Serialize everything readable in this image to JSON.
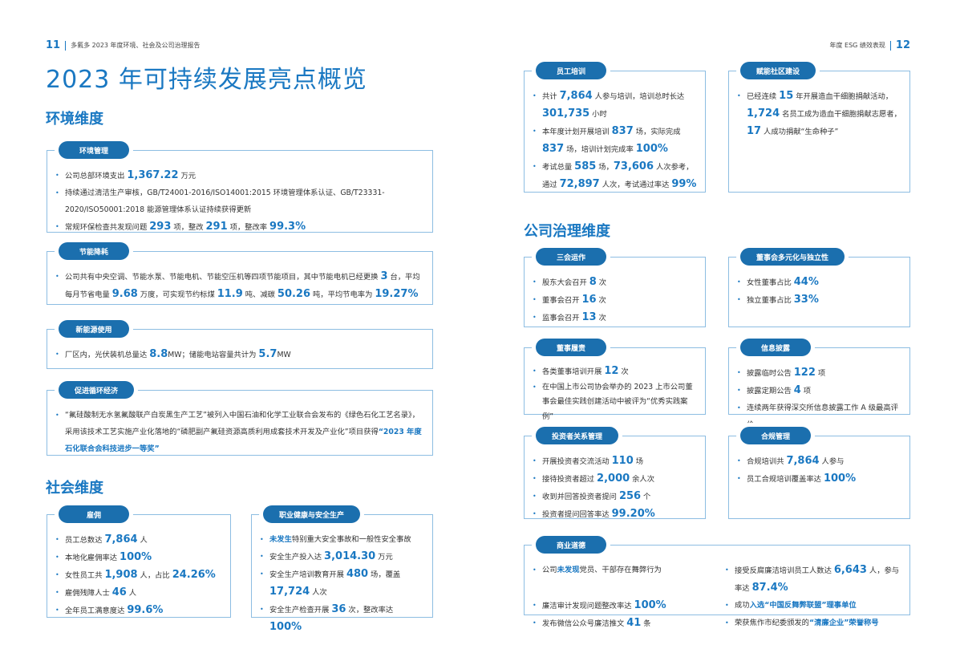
{
  "left_header": {
    "page": "11",
    "text": "多氟多 2023 年度环境、社会及公司治理报告"
  },
  "right_header": {
    "page": "12",
    "text": "年度 ESG 绩效表现"
  },
  "title": "2023 年可持续发展亮点概览",
  "sections": {
    "env": "环境维度",
    "soc": "社会维度",
    "gov": "公司治理维度"
  },
  "colors": {
    "accent": "#1a78c2",
    "pill": "#1b6fae",
    "border": "#8dbde2"
  },
  "cards": [
    {
      "label": "环境管理",
      "items": [
        [
          {
            "t": "公司总部环境支出 "
          },
          {
            "t": "1,367.22",
            "h": "n"
          },
          {
            "t": " 万元"
          }
        ],
        [
          {
            "t": "持续通过清洁生产审核，GB/T24001-2016/ISO14001:2015 环境管理体系认证、GB/T23331-2020/ISO50001:2018 能源管理体系认证持续获得更新"
          }
        ],
        [
          {
            "t": "常规环保检查共发现问题 "
          },
          {
            "t": "293",
            "h": "n"
          },
          {
            "t": " 项，整改 "
          },
          {
            "t": "291",
            "h": "n"
          },
          {
            "t": " 项，整改率 "
          },
          {
            "t": "99.3%",
            "h": "n"
          }
        ]
      ]
    },
    {
      "label": "节能降耗",
      "items": [
        [
          {
            "t": "公司共有中央空调、节能水泵、节能电机、节能空压机等四项节能项目，其中节能电机已经更换 "
          },
          {
            "t": "3",
            "h": "n"
          },
          {
            "t": " 台，平均每月节省电量 "
          },
          {
            "t": "9.68",
            "h": "n"
          },
          {
            "t": " 万度，可实现节约标煤 "
          },
          {
            "t": "11.9",
            "h": "n"
          },
          {
            "t": " 吨、减碳 "
          },
          {
            "t": "50.26",
            "h": "n"
          },
          {
            "t": " 吨，平均节电率为 "
          },
          {
            "t": "19.27%",
            "h": "n"
          }
        ]
      ]
    },
    {
      "label": "新能源使用",
      "items": [
        [
          {
            "t": "厂区内，光伏装机总量达 "
          },
          {
            "t": "8.8",
            "h": "n"
          },
          {
            "t": "MW；储能电站容量共计为 "
          },
          {
            "t": "5.7",
            "h": "n"
          },
          {
            "t": "MW"
          }
        ]
      ]
    },
    {
      "label": "促进循环经济",
      "items": [
        [
          {
            "t": "“氟硅酸制无水氢氟酸联产白炭黑生产工艺”被列入中国石油和化学工业联合会发布的《绿色石化工艺名录》，采用该技术工艺实施产业化落地的“磷肥副产氟硅资源高质利用成套技术开发及产业化”项目获得"
          },
          {
            "t": "“2023 年度石化联合会科技进步一等奖”",
            "h": "b"
          }
        ]
      ]
    },
    {
      "label": "雇佣",
      "items": [
        [
          {
            "t": "员工总数达 "
          },
          {
            "t": "7,864",
            "h": "n"
          },
          {
            "t": " 人"
          }
        ],
        [
          {
            "t": "本地化雇佣率达 "
          },
          {
            "t": "100%",
            "h": "n"
          }
        ],
        [
          {
            "t": "女性员工共 "
          },
          {
            "t": "1,908",
            "h": "n"
          },
          {
            "t": " 人，占比 "
          },
          {
            "t": "24.26%",
            "h": "n"
          }
        ],
        [
          {
            "t": "雇佣残障人士 "
          },
          {
            "t": "46",
            "h": "n"
          },
          {
            "t": " 人"
          }
        ],
        [
          {
            "t": "全年员工满意度达 "
          },
          {
            "t": "99.6%",
            "h": "n"
          }
        ]
      ]
    },
    {
      "label": "职业健康与安全生产",
      "items": [
        [
          {
            "t": "未发生",
            "h": "b"
          },
          {
            "t": "特别重大安全事故和一般性安全事故"
          }
        ],
        [
          {
            "t": "安全生产投入达 "
          },
          {
            "t": "3,014.30",
            "h": "n"
          },
          {
            "t": " 万元"
          }
        ],
        [
          {
            "t": "安全生产培训教育开展 "
          },
          {
            "t": "480",
            "h": "n"
          },
          {
            "t": " 场，覆盖 "
          },
          {
            "t": "17,724",
            "h": "n"
          },
          {
            "t": " 人次"
          }
        ],
        [
          {
            "t": "安全生产检查开展 "
          },
          {
            "t": "36",
            "h": "n"
          },
          {
            "t": " 次，整改率达 "
          },
          {
            "t": "100%",
            "h": "n"
          }
        ]
      ]
    },
    {
      "label": "员工培训",
      "items": [
        [
          {
            "t": "共计 "
          },
          {
            "t": "7,864",
            "h": "n"
          },
          {
            "t": " 人参与培训，培训总时长达 "
          },
          {
            "t": "301,735",
            "h": "n"
          },
          {
            "t": " 小时"
          }
        ],
        [
          {
            "t": "本年度计划开展培训 "
          },
          {
            "t": "837",
            "h": "n"
          },
          {
            "t": " 场，实际完成 "
          },
          {
            "t": "837",
            "h": "n"
          },
          {
            "t": " 场，培训计划完成率 "
          },
          {
            "t": "100%",
            "h": "n"
          }
        ],
        [
          {
            "t": "考试总量 "
          },
          {
            "t": "585",
            "h": "n"
          },
          {
            "t": " 场，"
          },
          {
            "t": "73,606",
            "h": "n"
          },
          {
            "t": " 人次参考，通过 "
          },
          {
            "t": "72,897",
            "h": "n"
          },
          {
            "t": " 人次，考试通过率达 "
          },
          {
            "t": "99%",
            "h": "n"
          }
        ]
      ]
    },
    {
      "label": "赋能社区建设",
      "items": [
        [
          {
            "t": "已经连续 "
          },
          {
            "t": "15",
            "h": "n"
          },
          {
            "t": " 年开展造血干细胞捐献活动，"
          },
          {
            "t": "1,724",
            "h": "n"
          },
          {
            "t": " 名员工成为造血干细胞捐献志愿者，"
          },
          {
            "t": "17",
            "h": "n"
          },
          {
            "t": " 人成功捐献“生命种子”"
          }
        ]
      ]
    },
    {
      "label": "三会运作",
      "items": [
        [
          {
            "t": "股东大会召开 "
          },
          {
            "t": "8",
            "h": "n"
          },
          {
            "t": " 次"
          }
        ],
        [
          {
            "t": "董事会召开 "
          },
          {
            "t": "16",
            "h": "n"
          },
          {
            "t": " 次"
          }
        ],
        [
          {
            "t": "监事会召开 "
          },
          {
            "t": "13",
            "h": "n"
          },
          {
            "t": " 次"
          }
        ]
      ]
    },
    {
      "label": "董事会多元化与独立性",
      "items": [
        [
          {
            "t": "女性董事占比 "
          },
          {
            "t": "44%",
            "h": "n"
          }
        ],
        [
          {
            "t": "独立董事占比 "
          },
          {
            "t": "33%",
            "h": "n"
          }
        ]
      ]
    },
    {
      "label": "董事履责",
      "items": [
        [
          {
            "t": "各类董事培训开展 "
          },
          {
            "t": "12",
            "h": "n"
          },
          {
            "t": " 次"
          }
        ],
        [
          {
            "t": "在中国上市公司协会举办的 2023 上市公司董事会最佳实践创建活动中被评为“优秀实践案例”"
          }
        ]
      ]
    },
    {
      "label": "信息披露",
      "items": [
        [
          {
            "t": "披露临时公告 "
          },
          {
            "t": "122",
            "h": "n"
          },
          {
            "t": " 项"
          }
        ],
        [
          {
            "t": "披露定期公告 "
          },
          {
            "t": "4",
            "h": "n"
          },
          {
            "t": " 项"
          }
        ],
        [
          {
            "t": "连续两年获得深交所信息披露工作 A 级最高评价"
          }
        ]
      ]
    },
    {
      "label": "投资者关系管理",
      "items": [
        [
          {
            "t": "开展投资者交流活动 "
          },
          {
            "t": "110",
            "h": "n"
          },
          {
            "t": " 场"
          }
        ],
        [
          {
            "t": "接待投资者超过 "
          },
          {
            "t": "2,000",
            "h": "n"
          },
          {
            "t": " 余人次"
          }
        ],
        [
          {
            "t": "收到并回答投资者提问 "
          },
          {
            "t": "256",
            "h": "n"
          },
          {
            "t": " 个"
          }
        ],
        [
          {
            "t": "投资者提问回答率达 "
          },
          {
            "t": "99.20%",
            "h": "n"
          }
        ]
      ]
    },
    {
      "label": "合规管理",
      "items": [
        [
          {
            "t": "合规培训共 "
          },
          {
            "t": "7,864",
            "h": "n"
          },
          {
            "t": " 人参与"
          }
        ],
        [
          {
            "t": "员工合规培训覆盖率达 "
          },
          {
            "t": "100%",
            "h": "n"
          }
        ]
      ]
    },
    {
      "label": "商业道德",
      "items": [
        [
          {
            "t": "公司"
          },
          {
            "t": "未发现",
            "h": "b"
          },
          {
            "t": "党员、干部存在舞弊行为"
          }
        ],
        [
          {
            "t": "廉洁审计发现问题整改率达 "
          },
          {
            "t": "100%",
            "h": "n"
          }
        ],
        [
          {
            "t": "发布微信公众号廉洁推文 "
          },
          {
            "t": "41",
            "h": "n"
          },
          {
            "t": " 条"
          }
        ],
        [
          {
            "t": "接受反腐廉洁培训员工人数达 "
          },
          {
            "t": "6,643",
            "h": "n"
          },
          {
            "t": " 人，参与率达 "
          },
          {
            "t": "87.4%",
            "h": "n"
          }
        ],
        [
          {
            "t": "成功"
          },
          {
            "t": "入选“中国反舞弊联盟”理事单位",
            "h": "b"
          }
        ],
        [
          {
            "t": "荣获焦作市纪委颁发的"
          },
          {
            "t": "“清廉企业”荣誉称号",
            "h": "b"
          }
        ]
      ]
    }
  ]
}
